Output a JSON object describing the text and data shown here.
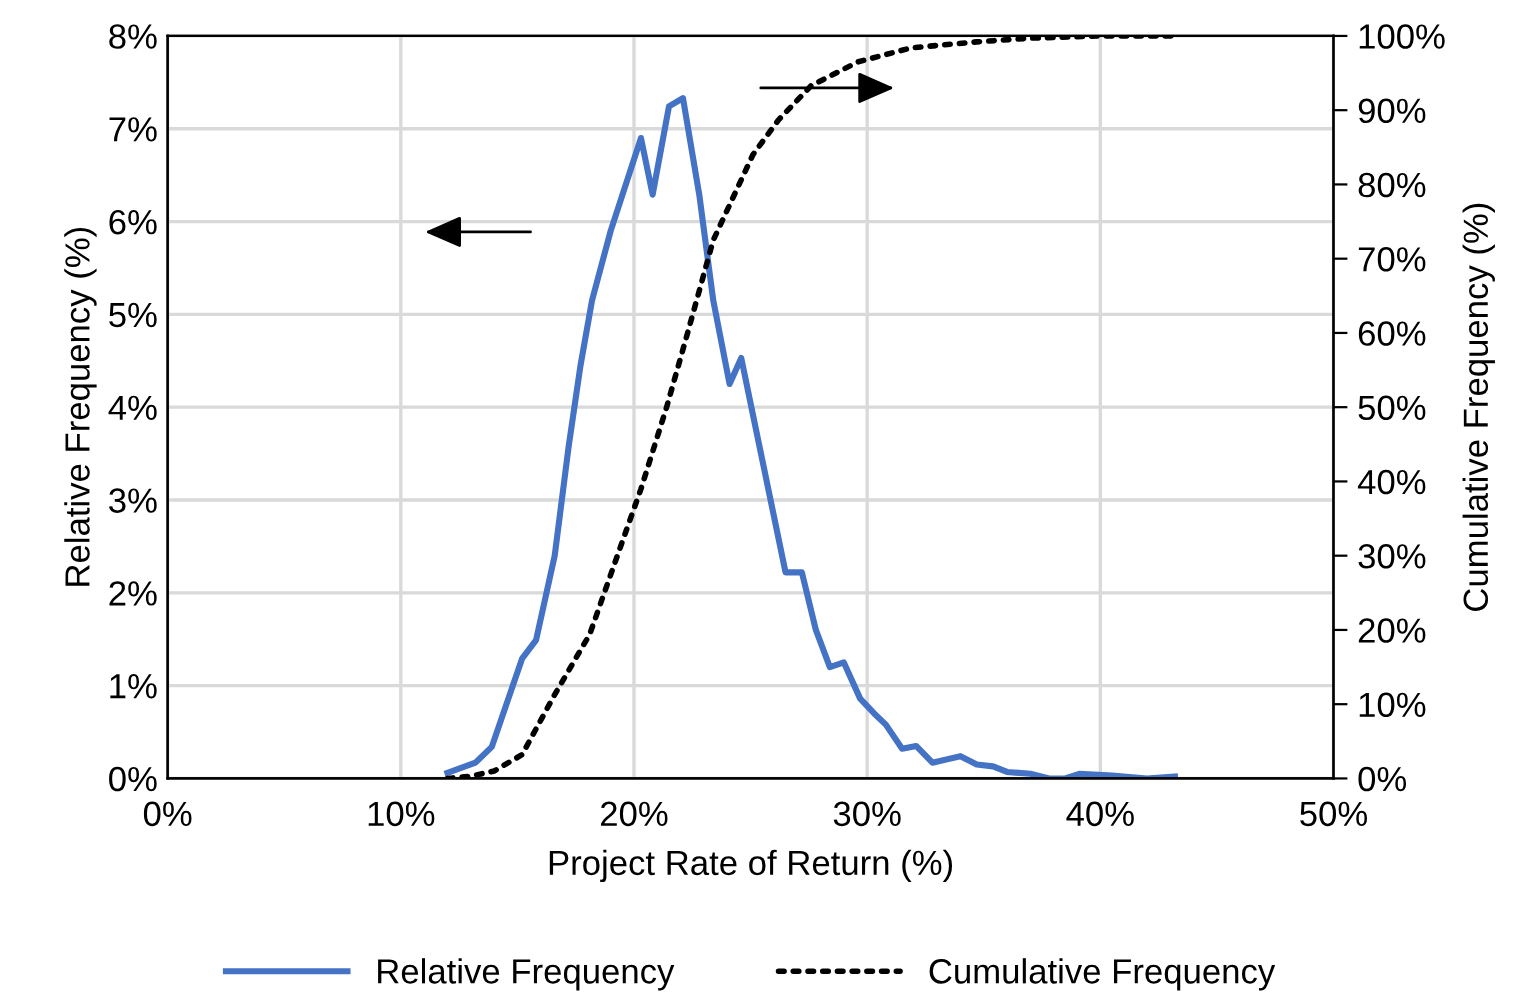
{
  "chart_data": {
    "type": "line",
    "xlabel": "Project Rate of Return (%)",
    "ylabel": "Relative Frequency (%)",
    "y2label": "Cumulative Frequency (%)",
    "xlim": [
      0,
      50
    ],
    "xticks": [
      {
        "value": 0,
        "label": "0%"
      },
      {
        "value": 10,
        "label": "10%"
      },
      {
        "value": 20,
        "label": "20%"
      },
      {
        "value": 30,
        "label": "30%"
      },
      {
        "value": 40,
        "label": "40%"
      },
      {
        "value": 50,
        "label": "50%"
      }
    ],
    "ylim": [
      0,
      8
    ],
    "yticks": [
      {
        "value": 0,
        "label": "0%"
      },
      {
        "value": 1,
        "label": "1%"
      },
      {
        "value": 2,
        "label": "2%"
      },
      {
        "value": 3,
        "label": "3%"
      },
      {
        "value": 4,
        "label": "4%"
      },
      {
        "value": 5,
        "label": "5%"
      },
      {
        "value": 6,
        "label": "6%"
      },
      {
        "value": 7,
        "label": "7%"
      },
      {
        "value": 8,
        "label": "8%"
      }
    ],
    "y2lim": [
      0,
      100
    ],
    "y2ticks": [
      {
        "value": 0,
        "label": "0%"
      },
      {
        "value": 10,
        "label": "10%"
      },
      {
        "value": 20,
        "label": "20%"
      },
      {
        "value": 30,
        "label": "30%"
      },
      {
        "value": 40,
        "label": "40%"
      },
      {
        "value": 50,
        "label": "50%"
      },
      {
        "value": 60,
        "label": "60%"
      },
      {
        "value": 70,
        "label": "70%"
      },
      {
        "value": 80,
        "label": "80%"
      },
      {
        "value": 90,
        "label": "90%"
      },
      {
        "value": 100,
        "label": "100%"
      }
    ],
    "grid": true,
    "legend": "bottom",
    "marker": "none",
    "series": [
      {
        "name": "Relative Frequency",
        "color": "#4472c4",
        "line_style": "solid",
        "x": [
          12.0,
          13.2,
          13.9,
          15.2,
          15.8,
          16.6,
          17.2,
          17.7,
          18.2,
          19.0,
          20.3,
          20.8,
          21.5,
          22.1,
          22.8,
          23.4,
          24.1,
          24.6,
          25.1,
          26.5,
          27.2,
          27.8,
          28.4,
          29.0,
          29.7,
          30.3,
          30.8,
          31.5,
          32.1,
          32.8,
          34.0,
          34.7,
          35.4,
          36.0,
          37.0,
          37.8,
          38.5,
          39.1,
          40.5,
          41.0,
          42.0,
          43.2
        ],
        "values": [
          0.06,
          0.17,
          0.34,
          1.29,
          1.49,
          2.4,
          3.58,
          4.44,
          5.15,
          5.9,
          6.9,
          6.29,
          7.24,
          7.33,
          6.29,
          5.15,
          4.25,
          4.53,
          3.92,
          2.22,
          2.22,
          1.6,
          1.2,
          1.25,
          0.86,
          0.7,
          0.58,
          0.32,
          0.35,
          0.17,
          0.24,
          0.15,
          0.13,
          0.07,
          0.05,
          0,
          0,
          0.05,
          0.03,
          0.02,
          0,
          0.02
        ]
      },
      {
        "name": "Cumulative Frequency",
        "color": "#000000",
        "line_style": "dotted",
        "axis": "y2",
        "x": [
          12.0,
          13.0,
          14.0,
          15.2,
          16.6,
          18.1,
          19.4,
          20.3,
          21.4,
          22.3,
          23.4,
          25.1,
          26.2,
          27.6,
          29.6,
          31.9,
          34.7,
          37.0,
          40.0,
          43.2
        ],
        "values": [
          0,
          0.3,
          1,
          3.2,
          11.3,
          19.4,
          31,
          39,
          50,
          60,
          72.5,
          84,
          88.7,
          93.3,
          96.5,
          98.4,
          99.2,
          99.7,
          100,
          100
        ]
      }
    ]
  }
}
